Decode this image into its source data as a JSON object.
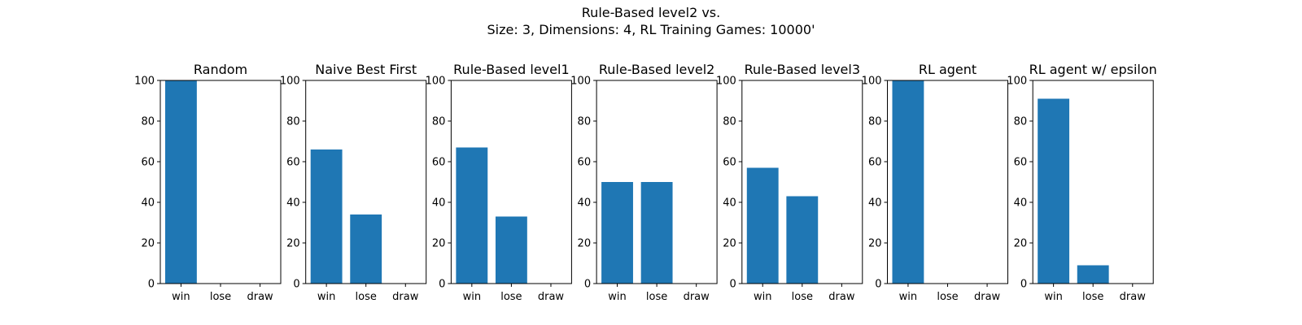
{
  "figure": {
    "title_line1": "Rule-Based level2 vs.",
    "title_line2": "Size: 3, Dimensions: 4, RL Training Games: 10000'"
  },
  "chart_data": [
    {
      "type": "bar",
      "title": "Random",
      "categories": [
        "win",
        "lose",
        "draw"
      ],
      "values": [
        100,
        0,
        0
      ],
      "ylim": [
        0,
        100
      ],
      "yticks": [
        0,
        20,
        40,
        60,
        80,
        100
      ],
      "color": "#1f77b4",
      "grid": false
    },
    {
      "type": "bar",
      "title": "Naive Best First",
      "categories": [
        "win",
        "lose",
        "draw"
      ],
      "values": [
        66,
        34,
        0
      ],
      "ylim": [
        0,
        100
      ],
      "yticks": [
        0,
        20,
        40,
        60,
        80,
        100
      ],
      "color": "#1f77b4",
      "grid": false
    },
    {
      "type": "bar",
      "title": "Rule-Based level1",
      "categories": [
        "win",
        "lose",
        "draw"
      ],
      "values": [
        67,
        33,
        0
      ],
      "ylim": [
        0,
        100
      ],
      "yticks": [
        0,
        20,
        40,
        60,
        80,
        100
      ],
      "color": "#1f77b4",
      "grid": false
    },
    {
      "type": "bar",
      "title": "Rule-Based level2",
      "categories": [
        "win",
        "lose",
        "draw"
      ],
      "values": [
        50,
        50,
        0
      ],
      "ylim": [
        0,
        100
      ],
      "yticks": [
        0,
        20,
        40,
        60,
        80,
        100
      ],
      "color": "#1f77b4",
      "grid": false
    },
    {
      "type": "bar",
      "title": "Rule-Based level3",
      "categories": [
        "win",
        "lose",
        "draw"
      ],
      "values": [
        57,
        43,
        0
      ],
      "ylim": [
        0,
        100
      ],
      "yticks": [
        0,
        20,
        40,
        60,
        80,
        100
      ],
      "color": "#1f77b4",
      "grid": false
    },
    {
      "type": "bar",
      "title": "RL agent",
      "categories": [
        "win",
        "lose",
        "draw"
      ],
      "values": [
        100,
        0,
        0
      ],
      "ylim": [
        0,
        100
      ],
      "yticks": [
        0,
        20,
        40,
        60,
        80,
        100
      ],
      "color": "#1f77b4",
      "grid": false
    },
    {
      "type": "bar",
      "title": "RL agent w/ epsilon",
      "categories": [
        "win",
        "lose",
        "draw"
      ],
      "values": [
        91,
        9,
        0
      ],
      "ylim": [
        0,
        100
      ],
      "yticks": [
        0,
        20,
        40,
        60,
        80,
        100
      ],
      "color": "#1f77b4",
      "grid": false
    }
  ]
}
